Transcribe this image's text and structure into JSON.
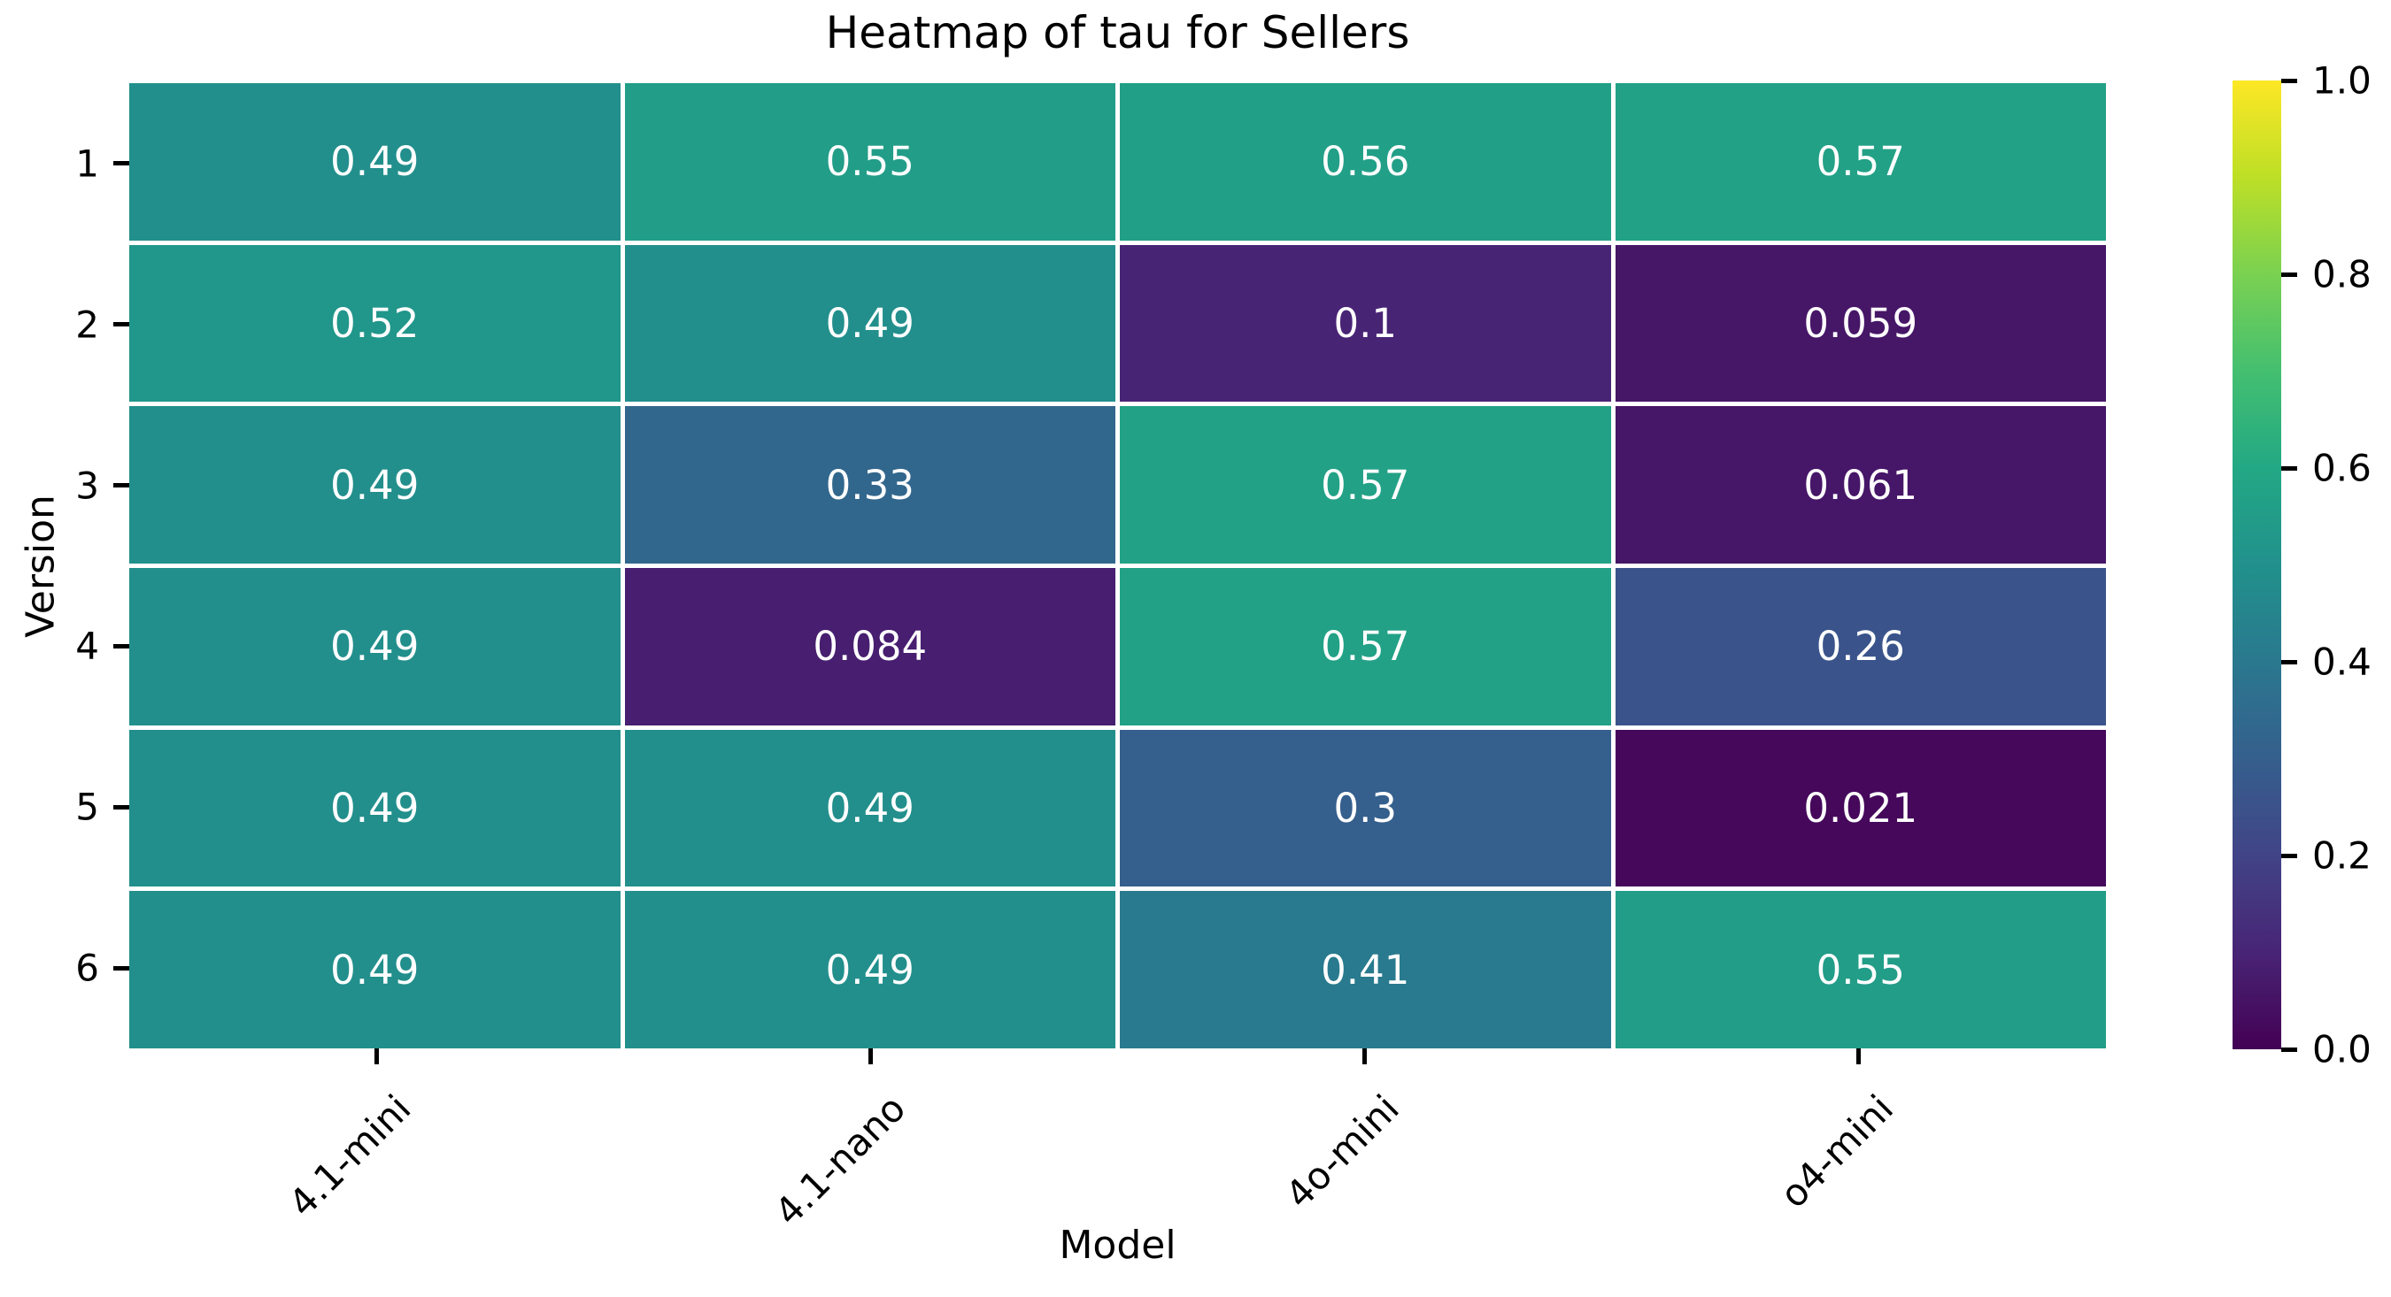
{
  "chart_data": {
    "type": "heatmap",
    "title": "Heatmap of tau for Sellers",
    "xlabel": "Model",
    "ylabel": "Version",
    "x_categories": [
      "4.1-mini",
      "4.1-nano",
      "4o-mini",
      "o4-mini"
    ],
    "y_categories": [
      "1",
      "2",
      "3",
      "4",
      "5",
      "6"
    ],
    "values": [
      [
        0.49,
        0.55,
        0.56,
        0.57
      ],
      [
        0.52,
        0.49,
        0.1,
        0.059
      ],
      [
        0.49,
        0.33,
        0.57,
        0.061
      ],
      [
        0.49,
        0.084,
        0.57,
        0.26
      ],
      [
        0.49,
        0.49,
        0.3,
        0.021
      ],
      [
        0.49,
        0.49,
        0.41,
        0.55
      ]
    ],
    "annotations": [
      [
        "0.49",
        "0.55",
        "0.56",
        "0.57"
      ],
      [
        "0.52",
        "0.49",
        "0.1",
        "0.059"
      ],
      [
        "0.49",
        "0.33",
        "0.57",
        "0.061"
      ],
      [
        "0.49",
        "0.084",
        "0.57",
        "0.26"
      ],
      [
        "0.49",
        "0.49",
        "0.3",
        "0.021"
      ],
      [
        "0.49",
        "0.49",
        "0.41",
        "0.55"
      ]
    ],
    "vmin": 0.0,
    "vmax": 1.0,
    "colorbar_tick_labels": [
      "1.0",
      "0.8",
      "0.6",
      "0.4",
      "0.2",
      "0.0"
    ],
    "colormap_name": "viridis",
    "colormap_stops": [
      "#440154",
      "#482475",
      "#414487",
      "#355f8d",
      "#2a788e",
      "#21918c",
      "#22a884",
      "#44bf70",
      "#7ad151",
      "#bddf26",
      "#fde725"
    ],
    "annotation_color": "#ffffff",
    "gridline_color": "#ffffff",
    "tick_color": "#000000",
    "text_color": "#000000",
    "legend_position": "right-colorbar",
    "grid": "off"
  }
}
